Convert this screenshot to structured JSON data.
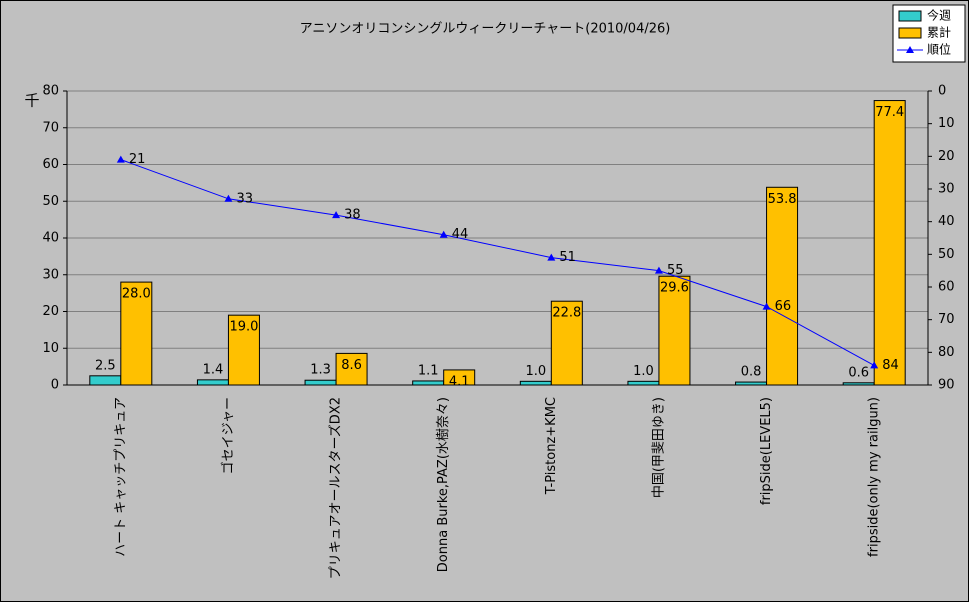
{
  "chart_data": {
    "type": "bar-line",
    "title": "アニソンオリコンシングルウィークリーチャート(2010/04/26)",
    "y_unit": "千",
    "categories": [
      "ハート キャッチプリキュア",
      "ゴセイジャー",
      "プリキュアオールスターズDX2",
      "Donna Burke,PAZ(水樹奈々)",
      "T-Pistonz+KMC",
      "中国(甲斐田ゆき)",
      "fripSide(LEVEL5)",
      "fripside(only my railgun)"
    ],
    "series": [
      {
        "name": "今週",
        "type": "bar",
        "color": "#33cccc",
        "values": [
          2.5,
          1.4,
          1.3,
          1.1,
          1.0,
          1.0,
          0.8,
          0.6
        ],
        "value_labels": [
          "2.5",
          "1.4",
          "1.3",
          "1.1",
          "1.0",
          "1.0",
          "0.8",
          "0.6"
        ]
      },
      {
        "name": "累計",
        "type": "bar",
        "color": "#ffc000",
        "values": [
          28.0,
          19.0,
          8.6,
          4.1,
          22.8,
          29.6,
          53.8,
          77.4
        ],
        "value_labels": [
          "28.0",
          "19.0",
          "8.6",
          "4.1",
          "22.8",
          "29.6",
          "53.8",
          "77.4"
        ]
      },
      {
        "name": "順位",
        "type": "line",
        "axis": "y2",
        "color": "#0000ff",
        "values": [
          21,
          33,
          38,
          44,
          51,
          55,
          66,
          84
        ]
      }
    ],
    "ylim": [
      0,
      80
    ],
    "yticks": [
      0,
      10,
      20,
      30,
      40,
      50,
      60,
      70,
      80
    ],
    "y2lim": [
      0,
      90
    ],
    "y2ticks": [
      0,
      10,
      20,
      30,
      40,
      50,
      60,
      70,
      80,
      90
    ],
    "y2_reversed": true,
    "grid": true,
    "legend": "top-right"
  }
}
